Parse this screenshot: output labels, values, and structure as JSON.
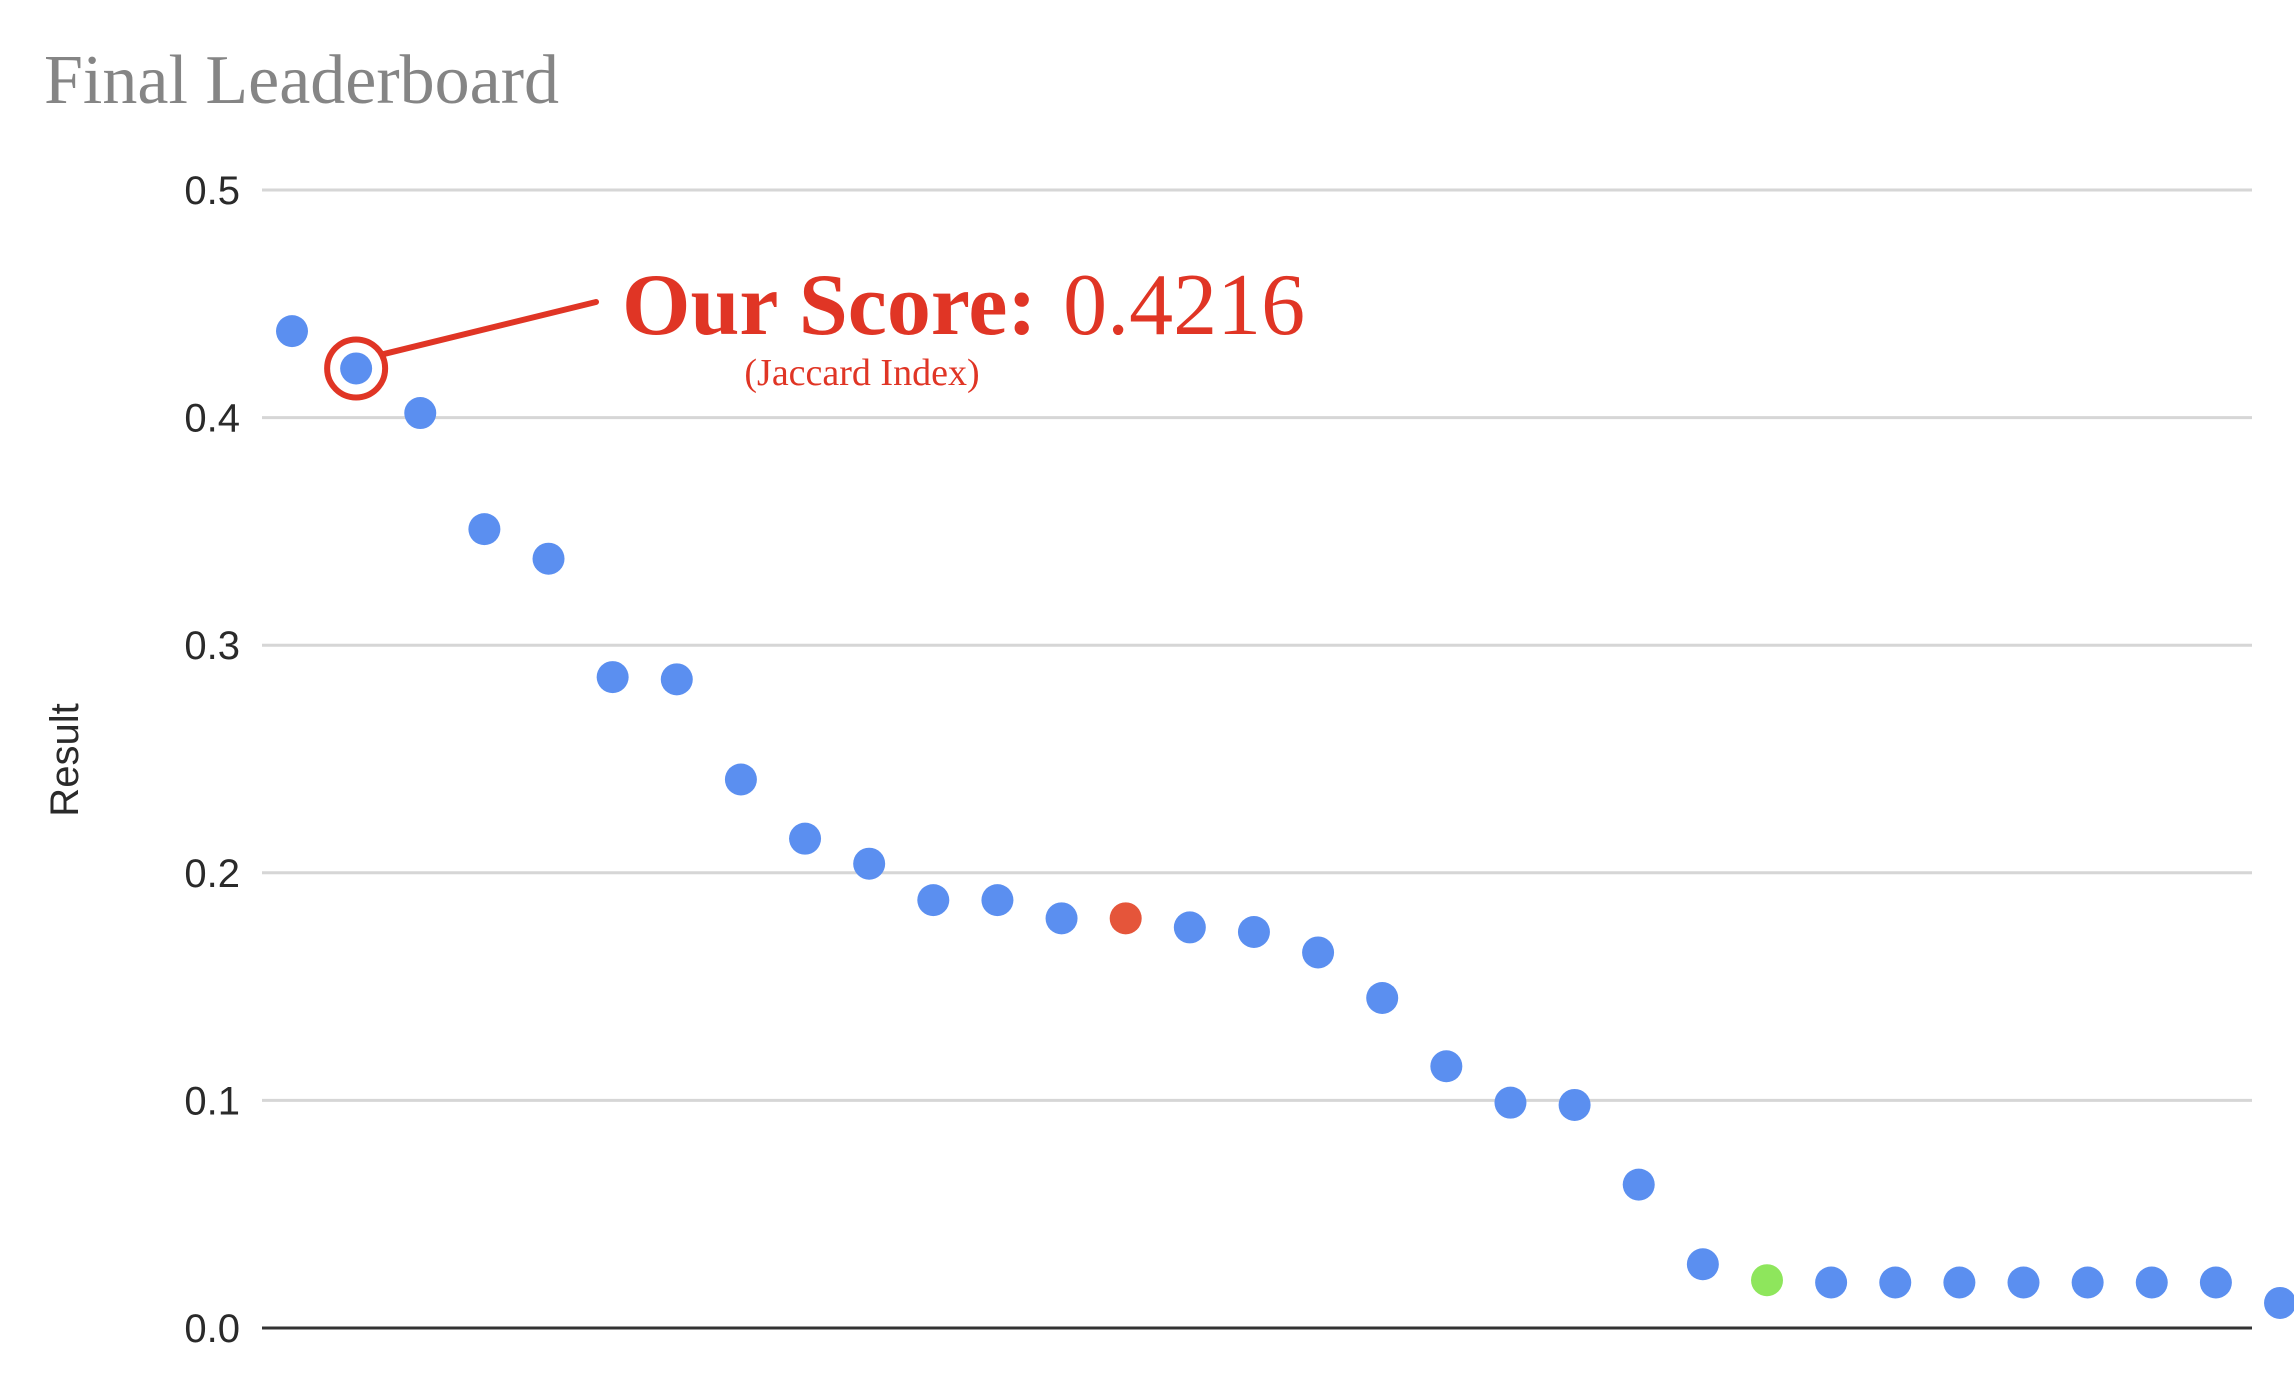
{
  "title": "Final Leaderboard",
  "colors": {
    "point": "#5b8ff0",
    "point_highlight_red": "#e5553a",
    "point_highlight_green": "#8ee65c",
    "annotation": "#e03525",
    "title": "#858585",
    "grid": "#d6d6d6"
  },
  "annotation": {
    "label": "Our Score:",
    "value": "0.4216",
    "sublabel": "(Jaccard Index)",
    "target_index": 1
  },
  "chart_data": {
    "type": "scatter",
    "title": "Final Leaderboard",
    "xlabel": "",
    "ylabel": "Result",
    "ylim": [
      0,
      0.5
    ],
    "yticks": [
      "0.0",
      "0.1",
      "0.2",
      "0.3",
      "0.4",
      "0.5"
    ],
    "grid": true,
    "legend": "none",
    "x": [
      1,
      2,
      3,
      4,
      5,
      6,
      7,
      8,
      9,
      10,
      11,
      12,
      13,
      14,
      15,
      16,
      17,
      18,
      19,
      20,
      21,
      22,
      23,
      24,
      25,
      26,
      27,
      28,
      29,
      30,
      31,
      32
    ],
    "y": [
      0.438,
      0.4216,
      0.402,
      0.351,
      0.338,
      0.286,
      0.285,
      0.241,
      0.215,
      0.204,
      0.188,
      0.188,
      0.18,
      0.18,
      0.176,
      0.174,
      0.165,
      0.145,
      0.115,
      0.099,
      0.098,
      0.063,
      0.028,
      0.021,
      0.02,
      0.02,
      0.02,
      0.02,
      0.02,
      0.02,
      0.02,
      0.011
    ],
    "point_colors": [
      "blue",
      "blue",
      "blue",
      "blue",
      "blue",
      "blue",
      "blue",
      "blue",
      "blue",
      "blue",
      "blue",
      "blue",
      "blue",
      "red",
      "blue",
      "blue",
      "blue",
      "blue",
      "blue",
      "blue",
      "blue",
      "blue",
      "blue",
      "green",
      "blue",
      "blue",
      "blue",
      "blue",
      "blue",
      "blue",
      "blue",
      "blue"
    ]
  }
}
